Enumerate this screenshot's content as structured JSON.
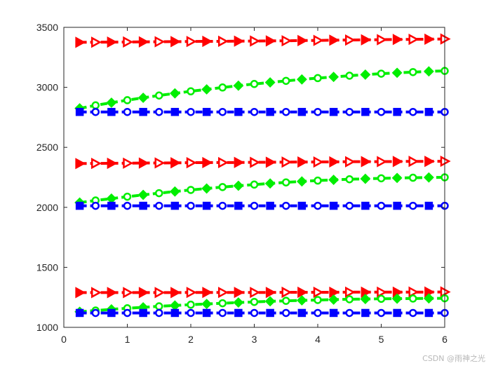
{
  "chart_data": {
    "type": "line",
    "title": "",
    "xlabel": "",
    "ylabel": "",
    "xlim": [
      0,
      6
    ],
    "ylim": [
      1000,
      3500
    ],
    "x_ticks": [
      0,
      1,
      2,
      3,
      4,
      5,
      6
    ],
    "y_ticks": [
      1000,
      1500,
      2000,
      2500,
      3000,
      3500
    ],
    "grid": false,
    "legend": "none",
    "x": [
      0.25,
      0.5,
      0.75,
      1.0,
      1.25,
      1.5,
      1.75,
      2.0,
      2.25,
      2.5,
      2.75,
      3.0,
      3.25,
      3.5,
      3.75,
      4.0,
      4.25,
      4.5,
      4.75,
      5.0,
      5.25,
      5.5,
      5.75,
      6.0
    ],
    "series": [
      {
        "color": "#ff0000",
        "marker": "triangle-right",
        "values": [
          3375,
          3376,
          3377,
          3378,
          3379,
          3380,
          3381,
          3382,
          3383,
          3384,
          3385,
          3386,
          3387,
          3388,
          3390,
          3391,
          3393,
          3394,
          3396,
          3397,
          3399,
          3400,
          3401,
          3403
        ]
      },
      {
        "color": "#00ee00",
        "marker": "diamond-circle",
        "values": [
          2825,
          2850,
          2872,
          2893,
          2913,
          2932,
          2950,
          2967,
          2983,
          2999,
          3014,
          3028,
          3041,
          3054,
          3066,
          3077,
          3087,
          3097,
          3106,
          3114,
          3121,
          3127,
          3133,
          3137
        ]
      },
      {
        "color": "#0000ff",
        "marker": "square-circle",
        "values": [
          2795,
          2795,
          2795,
          2795,
          2795,
          2795,
          2795,
          2795,
          2795,
          2795,
          2795,
          2795,
          2795,
          2795,
          2795,
          2795,
          2795,
          2795,
          2795,
          2795,
          2795,
          2795,
          2795,
          2795
        ]
      },
      {
        "color": "#ff0000",
        "marker": "triangle-right",
        "values": [
          2365,
          2366,
          2367,
          2368,
          2369,
          2370,
          2371,
          2372,
          2373,
          2373,
          2374,
          2375,
          2376,
          2377,
          2378,
          2378,
          2379,
          2380,
          2381,
          2381,
          2382,
          2383,
          2383,
          2384
        ]
      },
      {
        "color": "#00ee00",
        "marker": "diamond-circle",
        "values": [
          2040,
          2057,
          2073,
          2089,
          2104,
          2118,
          2132,
          2145,
          2157,
          2169,
          2180,
          2190,
          2199,
          2208,
          2216,
          2223,
          2229,
          2234,
          2238,
          2242,
          2245,
          2247,
          2249,
          2250
        ]
      },
      {
        "color": "#0000ff",
        "marker": "square-circle",
        "values": [
          2013,
          2013,
          2013,
          2013,
          2013,
          2013,
          2013,
          2013,
          2013,
          2013,
          2013,
          2013,
          2013,
          2013,
          2013,
          2013,
          2013,
          2013,
          2013,
          2013,
          2013,
          2013,
          2013,
          2013
        ]
      },
      {
        "color": "#ff0000",
        "marker": "triangle-right",
        "values": [
          1290,
          1290,
          1290,
          1290,
          1290,
          1290,
          1290,
          1291,
          1291,
          1291,
          1291,
          1291,
          1291,
          1292,
          1292,
          1292,
          1292,
          1293,
          1293,
          1293,
          1293,
          1294,
          1294,
          1295
        ]
      },
      {
        "color": "#00ee00",
        "marker": "diamond-circle",
        "values": [
          1130,
          1140,
          1150,
          1159,
          1167,
          1175,
          1182,
          1189,
          1195,
          1201,
          1207,
          1212,
          1217,
          1221,
          1225,
          1228,
          1231,
          1234,
          1236,
          1238,
          1239,
          1240,
          1241,
          1242
        ]
      },
      {
        "color": "#0000ff",
        "marker": "square-circle",
        "values": [
          1120,
          1120,
          1120,
          1120,
          1120,
          1120,
          1120,
          1120,
          1120,
          1120,
          1120,
          1120,
          1120,
          1120,
          1120,
          1120,
          1120,
          1120,
          1120,
          1120,
          1120,
          1120,
          1120,
          1120
        ]
      }
    ]
  },
  "watermark": "CSDN @雨神之光"
}
